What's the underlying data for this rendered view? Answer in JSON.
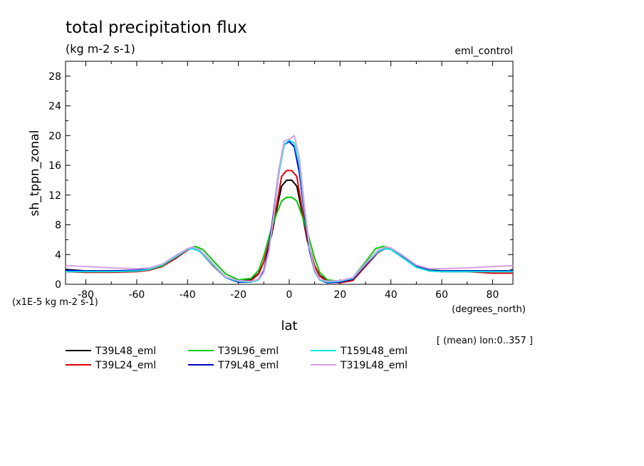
{
  "chart_data": {
    "type": "line",
    "title": "total precipitation flux",
    "subtitle": "(kg m-2 s-1)",
    "experiment_label": "eml_control",
    "ylabel": "sh_tppn_zonal",
    "y_units_note": "(x1E-5 kg m-2 s-1)",
    "xlabel": "lat",
    "x_units": "(degrees_north)",
    "mean_note": "[ (mean) lon:0..357 ]",
    "xlim": [
      -88,
      88
    ],
    "ylim": [
      0,
      30
    ],
    "x_ticks": [
      -80,
      -60,
      -40,
      -20,
      0,
      20,
      40,
      60,
      80
    ],
    "y_ticks": [
      0,
      4,
      8,
      12,
      16,
      20,
      24,
      28
    ],
    "grid": false,
    "legend_position": "bottom",
    "series": [
      {
        "name": "T39L48_eml",
        "color": "#000000",
        "x": [
          -88,
          -80,
          -70,
          -60,
          -55,
          -50,
          -45,
          -40,
          -38,
          -35,
          -30,
          -25,
          -20,
          -15,
          -12,
          -10,
          -7,
          -5,
          -3,
          -1,
          1,
          3,
          5,
          7,
          10,
          12,
          15,
          20,
          25,
          30,
          35,
          38,
          40,
          45,
          50,
          55,
          60,
          70,
          80,
          88
        ],
        "y": [
          2.0,
          1.8,
          1.8,
          1.8,
          2.0,
          2.5,
          3.5,
          4.7,
          4.9,
          4.4,
          2.6,
          1.0,
          0.4,
          0.6,
          1.5,
          3.0,
          6.5,
          10.0,
          13.2,
          14.0,
          14.0,
          13.2,
          9.8,
          6.0,
          2.5,
          1.2,
          0.5,
          0.3,
          0.6,
          2.5,
          4.4,
          4.9,
          4.8,
          3.6,
          2.4,
          1.9,
          1.8,
          1.8,
          1.8,
          1.8
        ]
      },
      {
        "name": "T39L24_eml",
        "color": "#e00000",
        "x": [
          -88,
          -80,
          -70,
          -60,
          -55,
          -50,
          -45,
          -40,
          -38,
          -35,
          -30,
          -25,
          -20,
          -15,
          -12,
          -10,
          -7,
          -5,
          -3,
          -1,
          1,
          3,
          5,
          7,
          10,
          12,
          15,
          20,
          25,
          30,
          35,
          38,
          40,
          45,
          50,
          55,
          60,
          70,
          80,
          88
        ],
        "y": [
          1.7,
          1.6,
          1.6,
          1.7,
          1.9,
          2.4,
          3.4,
          4.6,
          4.9,
          4.4,
          2.5,
          0.9,
          0.3,
          0.5,
          1.4,
          3.0,
          6.8,
          10.5,
          14.5,
          15.3,
          15.3,
          14.5,
          10.3,
          6.2,
          2.5,
          1.1,
          0.4,
          0.2,
          0.5,
          2.4,
          4.3,
          4.8,
          4.7,
          3.5,
          2.3,
          1.8,
          1.7,
          1.7,
          1.5,
          1.5
        ]
      },
      {
        "name": "T39L96_eml",
        "color": "#00c800",
        "x": [
          -88,
          -80,
          -70,
          -60,
          -55,
          -50,
          -45,
          -40,
          -37,
          -34,
          -30,
          -25,
          -20,
          -15,
          -12,
          -10,
          -7,
          -5,
          -3,
          -1,
          1,
          3,
          5,
          7,
          10,
          12,
          15,
          20,
          25,
          30,
          34,
          37,
          40,
          45,
          50,
          55,
          60,
          70,
          80,
          88
        ],
        "y": [
          1.8,
          1.8,
          1.8,
          1.8,
          2.0,
          2.5,
          3.6,
          4.8,
          5.1,
          4.7,
          3.2,
          1.4,
          0.6,
          0.8,
          1.9,
          3.8,
          7.5,
          9.5,
          11.2,
          11.7,
          11.7,
          11.2,
          9.3,
          7.2,
          3.5,
          1.6,
          0.6,
          0.4,
          0.9,
          3.0,
          4.8,
          5.1,
          4.9,
          3.8,
          2.5,
          2.0,
          1.8,
          1.8,
          1.8,
          1.8
        ]
      },
      {
        "name": "T79L48_eml",
        "color": "#0000c8",
        "x": [
          -88,
          -80,
          -70,
          -60,
          -55,
          -50,
          -45,
          -40,
          -38,
          -35,
          -30,
          -25,
          -20,
          -15,
          -12,
          -10,
          -8,
          -6,
          -4,
          -2,
          0,
          2,
          4,
          6,
          8,
          10,
          12,
          15,
          20,
          25,
          30,
          35,
          38,
          40,
          45,
          50,
          55,
          60,
          70,
          80,
          88
        ],
        "y": [
          1.9,
          1.8,
          1.8,
          1.9,
          2.1,
          2.6,
          3.6,
          4.7,
          4.9,
          4.5,
          2.7,
          0.9,
          0.3,
          0.3,
          0.7,
          1.8,
          5.0,
          10.0,
          15.5,
          18.8,
          19.2,
          18.5,
          15.0,
          9.5,
          4.5,
          1.8,
          0.6,
          0.2,
          0.3,
          0.7,
          2.6,
          4.4,
          4.8,
          4.7,
          3.6,
          2.4,
          1.9,
          1.8,
          1.8,
          1.8,
          1.8
        ]
      },
      {
        "name": "T159L48_eml",
        "color": "#00e6e6",
        "x": [
          -88,
          -80,
          -70,
          -60,
          -55,
          -50,
          -45,
          -40,
          -38,
          -35,
          -30,
          -25,
          -20,
          -15,
          -12,
          -10,
          -8,
          -6,
          -4,
          -2,
          0,
          2,
          4,
          6,
          8,
          10,
          12,
          15,
          20,
          25,
          30,
          35,
          38,
          40,
          45,
          50,
          55,
          60,
          70,
          80,
          88
        ],
        "y": [
          1.7,
          1.7,
          1.7,
          1.8,
          2.0,
          2.6,
          3.6,
          4.7,
          4.8,
          4.4,
          2.6,
          0.9,
          0.4,
          0.3,
          0.6,
          1.6,
          4.5,
          9.5,
          15.0,
          18.8,
          19.4,
          19.0,
          16.0,
          10.0,
          4.8,
          1.9,
          0.6,
          0.3,
          0.4,
          0.8,
          2.7,
          4.4,
          4.8,
          4.7,
          3.5,
          2.3,
          1.8,
          1.7,
          1.7,
          1.7,
          1.7
        ]
      },
      {
        "name": "T319L48_eml",
        "color": "#d8a0e0",
        "x": [
          -88,
          -80,
          -70,
          -60,
          -55,
          -50,
          -45,
          -40,
          -38,
          -35,
          -30,
          -25,
          -20,
          -15,
          -12,
          -10,
          -8,
          -6,
          -4,
          -2,
          0,
          2,
          4,
          6,
          8,
          10,
          12,
          15,
          20,
          25,
          30,
          35,
          38,
          40,
          45,
          50,
          55,
          60,
          70,
          80,
          88
        ],
        "y": [
          2.5,
          2.4,
          2.2,
          2.1,
          2.2,
          2.7,
          3.8,
          4.8,
          5.0,
          4.6,
          2.8,
          1.0,
          0.5,
          0.4,
          0.7,
          1.6,
          4.5,
          9.5,
          15.5,
          19.3,
          19.5,
          20.0,
          17.0,
          10.5,
          5.0,
          2.0,
          0.7,
          0.4,
          0.5,
          0.9,
          2.8,
          4.6,
          5.0,
          4.9,
          3.8,
          2.6,
          2.1,
          2.1,
          2.2,
          2.4,
          2.5
        ]
      }
    ]
  }
}
